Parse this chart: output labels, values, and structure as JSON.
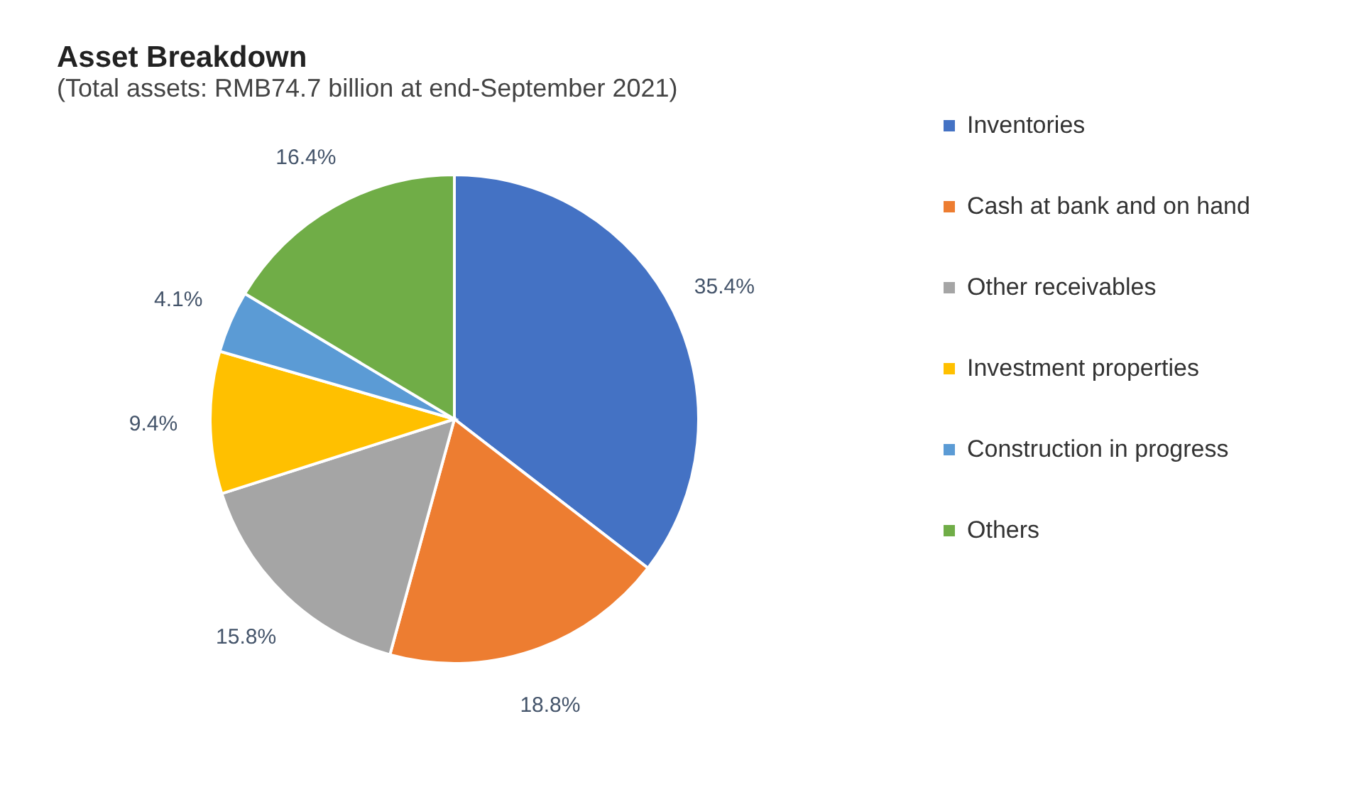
{
  "chart_data": {
    "type": "pie",
    "title": "Asset Breakdown",
    "subtitle": "(Total assets: RMB74.7 billion at end-September 2021)",
    "categories": [
      "Inventories",
      "Cash at bank and on hand",
      "Other receivables",
      "Investment properties",
      "Construction in progress",
      "Others"
    ],
    "values": [
      35.4,
      18.8,
      15.8,
      9.4,
      4.1,
      16.4
    ],
    "colors": [
      "#4472c4",
      "#ed7d31",
      "#a5a5a5",
      "#ffc000",
      "#5b9bd5",
      "#70ad47"
    ],
    "value_labels": [
      "35.4%",
      "18.8%",
      "15.8%",
      "9.4%",
      "4.1%",
      "16.4%"
    ],
    "legend": "right"
  }
}
